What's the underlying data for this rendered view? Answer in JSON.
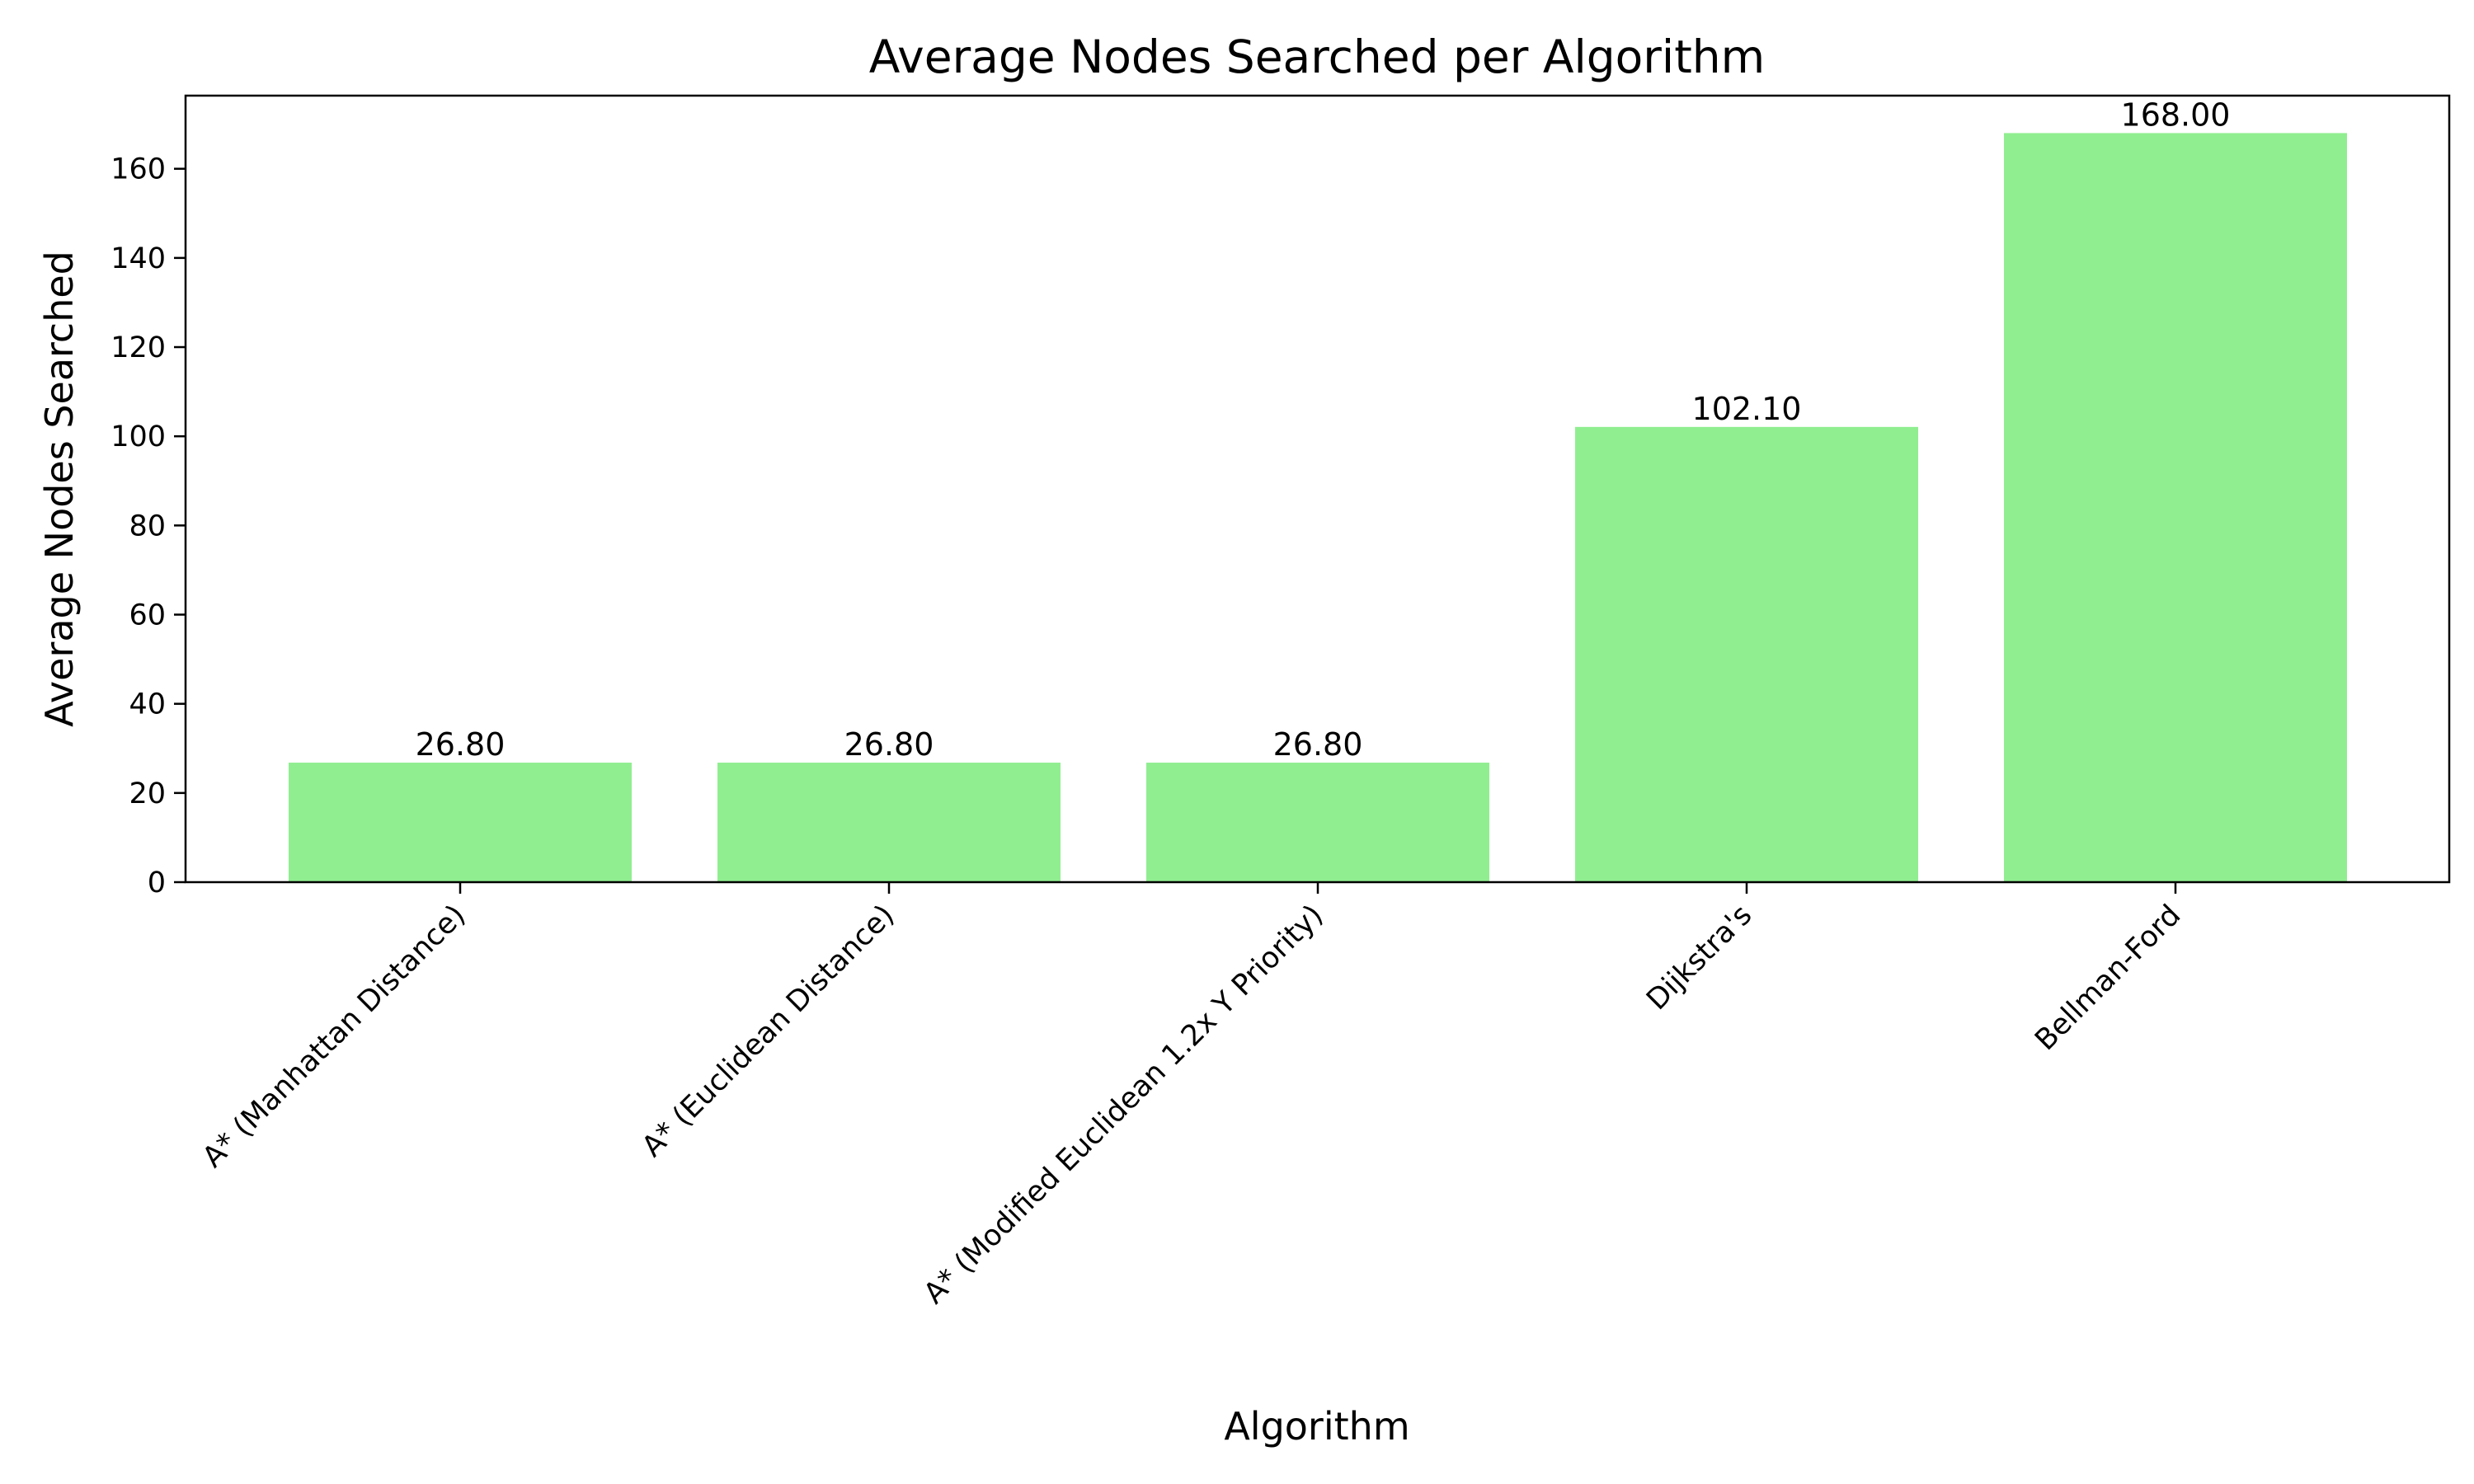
{
  "chart_data": {
    "type": "bar",
    "title": "Average Nodes Searched per Algorithm",
    "xlabel": "Algorithm",
    "ylabel": "Average Nodes Searched",
    "categories": [
      "A* (Manhattan Distance)",
      "A* (Euclidean Distance)",
      "A* (Modified Euclidean 1.2x Y Priority)",
      "Dijkstra's",
      "Bellman-Ford"
    ],
    "values": [
      26.8,
      26.8,
      26.8,
      102.1,
      168.0
    ],
    "data_labels": [
      "26.80",
      "26.80",
      "26.80",
      "102.10",
      "168.00"
    ],
    "ylim": [
      0,
      176.4
    ],
    "yticks": [
      0,
      20,
      40,
      60,
      80,
      100,
      120,
      140,
      160
    ],
    "ytick_labels": [
      "0",
      "20",
      "40",
      "60",
      "80",
      "100",
      "120",
      "140",
      "160"
    ],
    "bar_color": "#90ee90",
    "grid": false,
    "legend": "none"
  }
}
